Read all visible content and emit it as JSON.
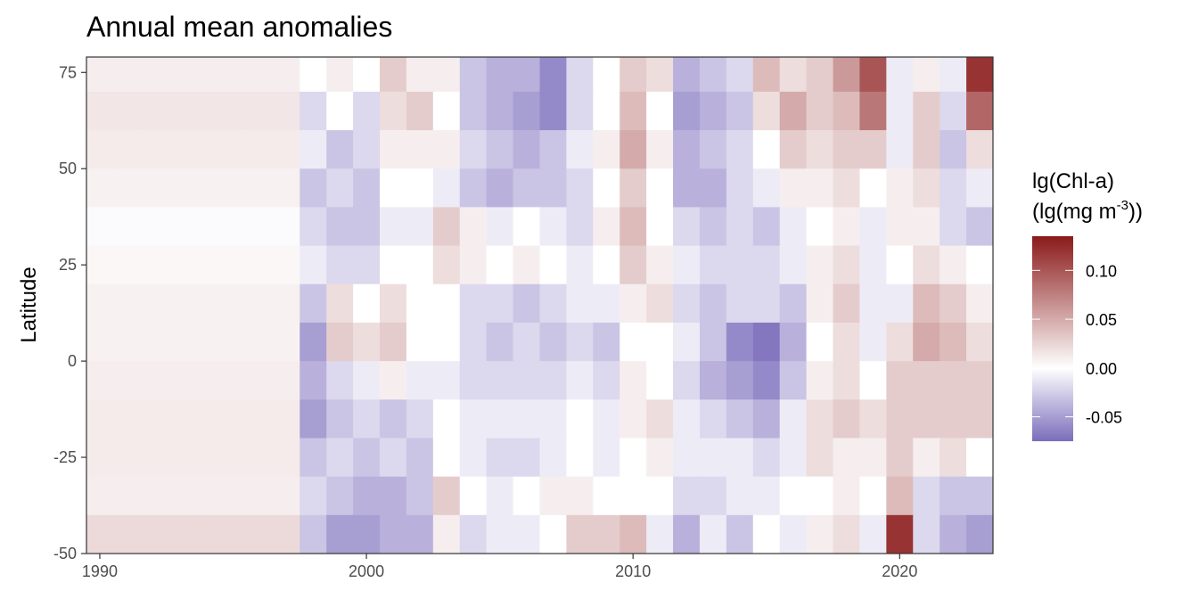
{
  "chart_data": {
    "type": "heatmap",
    "title": "Annual mean anomalies",
    "xlabel": "",
    "ylabel": "Latitude",
    "xlim": [
      1989.5,
      2023.5
    ],
    "ylim": [
      -50,
      79
    ],
    "x_ticks": [
      {
        "value": 1990,
        "label": "1990"
      },
      {
        "value": 2000,
        "label": "2000"
      },
      {
        "value": 2010,
        "label": "2010"
      },
      {
        "value": 2020,
        "label": "2020"
      }
    ],
    "y_ticks": [
      {
        "value": 75,
        "label": "75"
      },
      {
        "value": 50,
        "label": "50"
      },
      {
        "value": 25,
        "label": "25"
      },
      {
        "value": 0,
        "label": "0"
      },
      {
        "value": -25,
        "label": "-25"
      },
      {
        "value": -50,
        "label": "-50"
      }
    ],
    "years": [
      1990,
      1991,
      1992,
      1993,
      1994,
      1995,
      1996,
      1997,
      1998,
      1999,
      2000,
      2001,
      2002,
      2003,
      2004,
      2005,
      2006,
      2007,
      2008,
      2009,
      2010,
      2011,
      2012,
      2013,
      2014,
      2015,
      2016,
      2017,
      2018,
      2019,
      2020,
      2021,
      2022,
      2023
    ],
    "lat_bands": [
      75,
      65,
      55,
      45,
      35,
      25,
      15,
      5,
      -5,
      -15,
      -25,
      -35,
      -45
    ],
    "lat_band_height": 10,
    "values": [
      [
        0.01,
        0.01,
        0.01,
        0.01,
        0.01,
        0.01,
        0.01,
        0.01,
        0.0,
        0.01,
        0.0,
        0.03,
        0.01,
        0.01,
        -0.03,
        -0.04,
        -0.04,
        -0.06,
        -0.02,
        0.0,
        0.03,
        0.02,
        -0.04,
        -0.03,
        -0.02,
        0.04,
        0.02,
        0.03,
        0.06,
        0.1,
        -0.01,
        0.01,
        -0.01,
        0.12
      ],
      [
        0.015,
        0.015,
        0.015,
        0.015,
        0.015,
        0.015,
        0.015,
        0.015,
        -0.02,
        0.0,
        -0.02,
        0.02,
        0.03,
        0.0,
        -0.03,
        -0.04,
        -0.05,
        -0.06,
        -0.02,
        0.0,
        0.04,
        0.0,
        -0.05,
        -0.04,
        -0.03,
        0.02,
        0.05,
        0.03,
        0.04,
        0.08,
        -0.01,
        0.03,
        -0.02,
        0.09
      ],
      [
        0.012,
        0.012,
        0.012,
        0.012,
        0.012,
        0.012,
        0.012,
        0.012,
        -0.01,
        -0.03,
        -0.02,
        0.01,
        0.01,
        0.01,
        -0.02,
        -0.03,
        -0.04,
        -0.03,
        -0.01,
        0.01,
        0.05,
        0.01,
        -0.04,
        -0.03,
        -0.02,
        0.0,
        0.03,
        0.02,
        0.03,
        0.03,
        -0.01,
        0.03,
        -0.03,
        0.02
      ],
      [
        0.008,
        0.008,
        0.008,
        0.008,
        0.008,
        0.008,
        0.008,
        0.008,
        -0.03,
        -0.02,
        -0.03,
        0.0,
        0.0,
        -0.01,
        -0.03,
        -0.04,
        -0.03,
        -0.03,
        -0.02,
        0.0,
        0.03,
        0.0,
        -0.04,
        -0.04,
        -0.02,
        -0.01,
        0.01,
        0.01,
        0.02,
        0.0,
        0.01,
        0.02,
        -0.02,
        -0.01
      ],
      [
        -0.002,
        -0.002,
        -0.002,
        -0.002,
        -0.002,
        -0.002,
        -0.002,
        -0.002,
        -0.02,
        -0.03,
        -0.03,
        -0.01,
        -0.01,
        0.03,
        0.01,
        -0.01,
        0.0,
        -0.01,
        -0.02,
        0.01,
        0.04,
        0.0,
        -0.02,
        -0.03,
        -0.02,
        -0.03,
        -0.01,
        0.0,
        0.01,
        -0.01,
        0.01,
        0.01,
        -0.02,
        -0.03
      ],
      [
        0.005,
        0.005,
        0.005,
        0.005,
        0.005,
        0.005,
        0.005,
        0.005,
        -0.01,
        -0.02,
        -0.02,
        0.0,
        0.0,
        0.02,
        0.01,
        0.0,
        0.01,
        0.0,
        -0.01,
        0.0,
        0.03,
        0.01,
        -0.01,
        -0.02,
        -0.02,
        -0.02,
        -0.01,
        0.01,
        0.02,
        -0.01,
        0.0,
        0.02,
        0.01,
        0.0
      ],
      [
        0.008,
        0.008,
        0.008,
        0.008,
        0.008,
        0.008,
        0.008,
        0.008,
        -0.03,
        0.02,
        0.0,
        0.02,
        0.0,
        0.0,
        -0.02,
        -0.02,
        -0.03,
        -0.02,
        -0.01,
        -0.01,
        0.01,
        0.02,
        -0.02,
        -0.03,
        -0.02,
        -0.02,
        -0.03,
        0.01,
        0.03,
        -0.01,
        -0.01,
        0.04,
        0.03,
        0.01
      ],
      [
        0.008,
        0.008,
        0.008,
        0.008,
        0.008,
        0.008,
        0.008,
        0.008,
        -0.05,
        0.03,
        0.02,
        0.03,
        0.0,
        0.0,
        -0.02,
        -0.03,
        -0.02,
        -0.03,
        -0.02,
        -0.03,
        0.0,
        0.0,
        -0.01,
        -0.03,
        -0.06,
        -0.07,
        -0.04,
        0.0,
        0.02,
        -0.01,
        0.02,
        0.05,
        0.04,
        0.02
      ],
      [
        0.01,
        0.01,
        0.01,
        0.01,
        0.01,
        0.01,
        0.01,
        0.01,
        -0.04,
        -0.02,
        -0.01,
        0.01,
        -0.01,
        -0.01,
        -0.02,
        -0.02,
        -0.02,
        -0.02,
        -0.01,
        -0.02,
        0.01,
        0.0,
        -0.02,
        -0.04,
        -0.05,
        -0.06,
        -0.03,
        0.01,
        0.02,
        0.0,
        0.03,
        0.03,
        0.03,
        0.03
      ],
      [
        0.012,
        0.012,
        0.012,
        0.012,
        0.012,
        0.012,
        0.012,
        0.012,
        -0.05,
        -0.03,
        -0.02,
        -0.03,
        -0.02,
        0.0,
        -0.01,
        -0.01,
        -0.01,
        -0.01,
        0.0,
        -0.01,
        0.01,
        0.02,
        -0.01,
        -0.02,
        -0.03,
        -0.04,
        -0.01,
        0.02,
        0.03,
        0.02,
        0.03,
        0.03,
        0.03,
        0.03
      ],
      [
        0.012,
        0.012,
        0.012,
        0.012,
        0.012,
        0.012,
        0.012,
        0.012,
        -0.03,
        -0.02,
        -0.03,
        -0.02,
        -0.03,
        0.0,
        -0.01,
        -0.02,
        -0.02,
        -0.01,
        0.0,
        -0.01,
        0.0,
        0.01,
        -0.01,
        -0.01,
        -0.01,
        -0.02,
        -0.01,
        0.02,
        0.01,
        0.01,
        0.03,
        0.01,
        0.02,
        0.0
      ],
      [
        0.01,
        0.01,
        0.01,
        0.01,
        0.01,
        0.01,
        0.01,
        0.01,
        -0.02,
        -0.03,
        -0.04,
        -0.04,
        -0.03,
        0.03,
        0.0,
        -0.01,
        0.0,
        0.01,
        0.01,
        0.0,
        0.0,
        0.0,
        -0.02,
        -0.02,
        -0.01,
        -0.01,
        0.0,
        0.0,
        0.01,
        0.0,
        0.04,
        -0.02,
        -0.03,
        -0.03
      ],
      [
        0.022,
        0.022,
        0.022,
        0.022,
        0.022,
        0.022,
        0.022,
        0.022,
        -0.03,
        -0.05,
        -0.05,
        -0.04,
        -0.04,
        0.01,
        -0.02,
        -0.01,
        -0.01,
        0.0,
        0.03,
        0.03,
        0.04,
        -0.01,
        -0.04,
        -0.01,
        -0.03,
        0.0,
        -0.01,
        0.01,
        0.02,
        -0.01,
        0.12,
        -0.02,
        -0.04,
        -0.05
      ]
    ],
    "colorbar": {
      "title_line1": "lg(Chl-a)",
      "title_line2_pre": "(lg(mg m",
      "title_line2_sup": "-3",
      "title_line2_post": "))",
      "min": -0.075,
      "max": 0.135,
      "ticks": [
        {
          "value": 0.1,
          "label": "0.10"
        },
        {
          "value": 0.05,
          "label": "0.05"
        },
        {
          "value": 0.0,
          "label": "0.00"
        },
        {
          "value": -0.05,
          "label": "-0.05"
        }
      ],
      "low_color": "#7B6DBB",
      "mid_color": "#FFFFFF",
      "high_color": "#8B1A1A"
    }
  }
}
